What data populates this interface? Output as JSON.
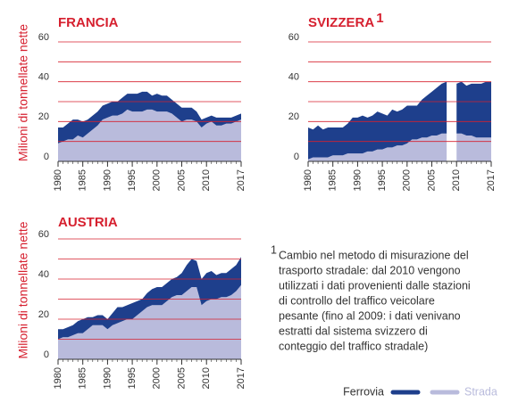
{
  "chart_data": [
    {
      "type": "stacked-area",
      "title": "FRANCIA",
      "ylabel": "Milioni di tonnellate nette",
      "x": [
        1980,
        1981,
        1982,
        1983,
        1984,
        1985,
        1986,
        1987,
        1988,
        1989,
        1990,
        1991,
        1992,
        1993,
        1994,
        1995,
        1996,
        1997,
        1998,
        1999,
        2000,
        2001,
        2002,
        2003,
        2004,
        2005,
        2006,
        2007,
        2008,
        2009,
        2010,
        2011,
        2012,
        2013,
        2014,
        2015,
        2016,
        2017
      ],
      "series": [
        {
          "name": "Ferrovia",
          "color": "#1e3f8c",
          "values": [
            8,
            7,
            8,
            10,
            8,
            8,
            7,
            7,
            7,
            7,
            7,
            7,
            7,
            8,
            8,
            9,
            9,
            10,
            9,
            7,
            9,
            8,
            8,
            7,
            7,
            7,
            6,
            6,
            5,
            4,
            3,
            3,
            4,
            4,
            3,
            3,
            3,
            3
          ]
        },
        {
          "name": "Strada",
          "color": "#b9bbdc",
          "values": [
            9,
            10,
            11,
            11,
            13,
            12,
            14,
            16,
            18,
            21,
            22,
            23,
            23,
            24,
            26,
            25,
            25,
            25,
            26,
            26,
            25,
            25,
            25,
            24,
            22,
            20,
            21,
            21,
            20,
            17,
            19,
            20,
            18,
            18,
            19,
            19,
            20,
            21
          ]
        }
      ],
      "xlim": [
        1980,
        2017
      ],
      "xticks": [
        1980,
        1985,
        1990,
        1995,
        2000,
        2005,
        2010,
        2017
      ],
      "ylim": [
        0,
        60
      ],
      "yticks": [
        0,
        20,
        40,
        60
      ],
      "yminorticks": [
        10,
        30,
        50
      ],
      "grid": true
    },
    {
      "type": "stacked-area",
      "title": "SVIZZERA",
      "title_marker": "1",
      "x": [
        1980,
        1981,
        1982,
        1983,
        1984,
        1985,
        1986,
        1987,
        1988,
        1989,
        1990,
        1991,
        1992,
        1993,
        1994,
        1995,
        1996,
        1997,
        1998,
        1999,
        2000,
        2001,
        2002,
        2003,
        2004,
        2005,
        2006,
        2007,
        2008,
        2009,
        2010,
        2011,
        2012,
        2013,
        2014,
        2015,
        2016,
        2017
      ],
      "series": [
        {
          "name": "Ferrovia",
          "color": "#1e3f8c",
          "values": [
            16,
            14,
            16,
            14,
            15,
            14,
            14,
            14,
            15,
            18,
            18,
            19,
            17,
            18,
            19,
            18,
            16,
            19,
            17,
            18,
            19,
            17,
            17,
            19,
            21,
            22,
            24,
            25,
            26,
            null,
            25,
            26,
            25,
            26,
            27,
            27,
            28,
            28
          ]
        },
        {
          "name": "Strada",
          "color": "#b9bbdc",
          "values": [
            1,
            2,
            2,
            2,
            2,
            3,
            3,
            3,
            4,
            4,
            4,
            4,
            5,
            5,
            6,
            6,
            7,
            7,
            8,
            8,
            9,
            11,
            11,
            12,
            12,
            13,
            13,
            14,
            14,
            null,
            14,
            14,
            13,
            13,
            12,
            12,
            12,
            12
          ]
        }
      ],
      "xlim": [
        1980,
        2017
      ],
      "xticks": [
        1980,
        1985,
        1990,
        1995,
        2000,
        2005,
        2010,
        2017
      ],
      "ylim": [
        0,
        60
      ],
      "yticks": [
        0,
        20,
        40,
        60
      ],
      "yminorticks": [
        10,
        30,
        50
      ],
      "grid": true
    },
    {
      "type": "stacked-area",
      "title": "AUSTRIA",
      "ylabel": "Milioni di tonnellate nette",
      "x": [
        1980,
        1981,
        1982,
        1983,
        1984,
        1985,
        1986,
        1987,
        1988,
        1989,
        1990,
        1991,
        1992,
        1993,
        1994,
        1995,
        1996,
        1997,
        1998,
        1999,
        2000,
        2001,
        2002,
        2003,
        2004,
        2005,
        2006,
        2007,
        2008,
        2009,
        2010,
        2011,
        2012,
        2013,
        2014,
        2015,
        2016,
        2017
      ],
      "series": [
        {
          "name": "Ferrovia",
          "color": "#1e3f8c",
          "values": [
            5,
            4,
            5,
            5,
            6,
            7,
            6,
            4,
            5,
            5,
            5,
            6,
            8,
            7,
            7,
            8,
            7,
            6,
            7,
            8,
            9,
            9,
            9,
            9,
            9,
            11,
            13,
            14,
            13,
            13,
            14,
            14,
            12,
            12,
            12,
            13,
            13,
            14
          ]
        },
        {
          "name": "Strada",
          "color": "#b9bbdc",
          "values": [
            10,
            11,
            11,
            12,
            13,
            13,
            15,
            17,
            17,
            17,
            15,
            17,
            18,
            19,
            20,
            20,
            22,
            24,
            26,
            27,
            27,
            27,
            29,
            31,
            32,
            32,
            34,
            36,
            36,
            27,
            29,
            30,
            30,
            31,
            31,
            32,
            34,
            37
          ]
        }
      ],
      "xlim": [
        1980,
        2017
      ],
      "xticks": [
        1980,
        1985,
        1990,
        1995,
        2000,
        2005,
        2010,
        2017
      ],
      "ylim": [
        0,
        60
      ],
      "yticks": [
        0,
        20,
        40,
        60
      ],
      "yminorticks": [
        10,
        30,
        50
      ],
      "grid": true
    }
  ],
  "footnote": {
    "marker": "1",
    "lines": [
      "Cambio nel metodo di misurazione del",
      "trasporto stradale: dal 2010 vengono",
      "utilizzati i dati provenienti dalle stazioni",
      "di controllo del traffico veicolare",
      "pesante (fino al 2009: i dati venivano",
      "estratti dal sistema svizzero di",
      "conteggio del traffico stradale)"
    ]
  }
}
